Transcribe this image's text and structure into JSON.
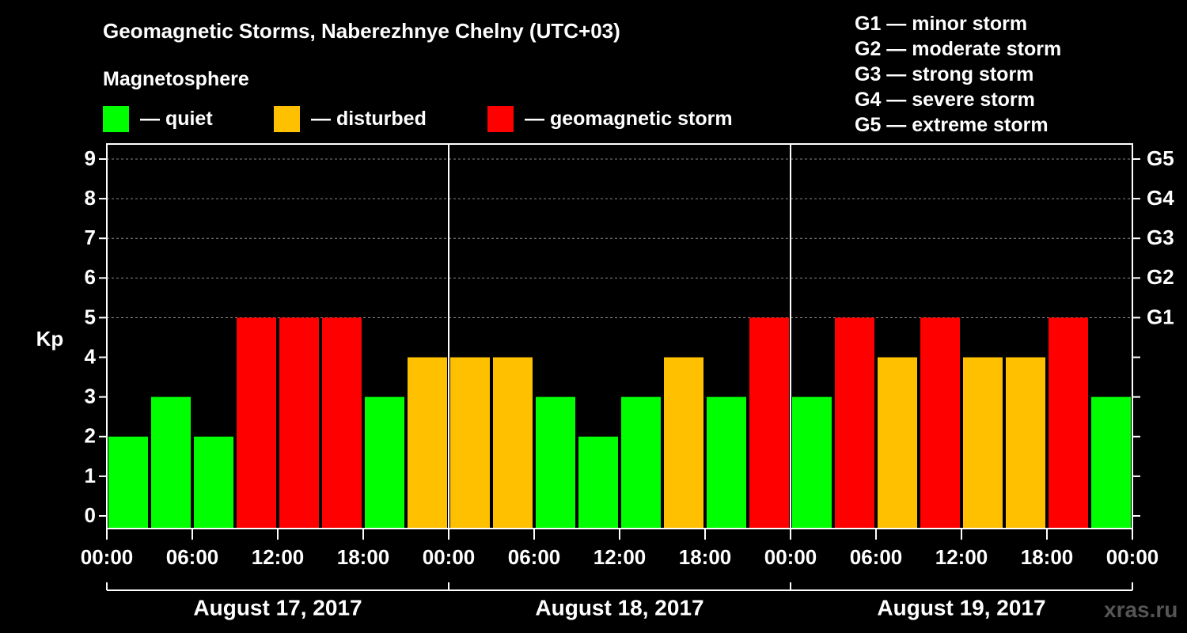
{
  "title": "Geomagnetic Storms, Naberezhnye Chelny (UTC+03)",
  "subtitle": "Magnetosphere",
  "legend": [
    {
      "label": "— quiet",
      "color": "#00ff00"
    },
    {
      "label": "— disturbed",
      "color": "#ffc000"
    },
    {
      "label": "— geomagnetic storm",
      "color": "#ff0000"
    }
  ],
  "g_scale_legend": [
    "G1 — minor storm",
    "G2 — moderate storm",
    "G3 — strong storm",
    "G4 — severe storm",
    "G5 — extreme storm"
  ],
  "watermark": "xras.ru",
  "chart_data": {
    "type": "bar",
    "ylabel": "Kp",
    "ylim": [
      0,
      9
    ],
    "yticks": [
      0,
      1,
      2,
      3,
      4,
      5,
      6,
      7,
      8,
      9
    ],
    "right_axis_labels": [
      {
        "kp": 5,
        "label": "G1"
      },
      {
        "kp": 6,
        "label": "G2"
      },
      {
        "kp": 7,
        "label": "G3"
      },
      {
        "kp": 8,
        "label": "G4"
      },
      {
        "kp": 9,
        "label": "G5"
      }
    ],
    "xtick_labels": [
      "00:00",
      "06:00",
      "12:00",
      "18:00",
      "00:00",
      "06:00",
      "12:00",
      "18:00",
      "00:00",
      "06:00",
      "12:00",
      "18:00",
      "00:00"
    ],
    "days": [
      "August 17, 2017",
      "August 18, 2017",
      "August 19, 2017"
    ],
    "interval_hours": 3,
    "values": [
      2,
      3,
      2,
      5,
      5,
      5,
      3,
      4,
      4,
      4,
      3,
      2,
      3,
      4,
      3,
      5,
      3,
      5,
      4,
      5,
      4,
      4,
      5,
      3
    ],
    "colors": {
      "quiet": "#00ff00",
      "disturbed": "#ffc000",
      "storm": "#ff0000"
    },
    "grid_dashed_at": [
      5,
      6,
      7,
      8,
      9
    ]
  }
}
